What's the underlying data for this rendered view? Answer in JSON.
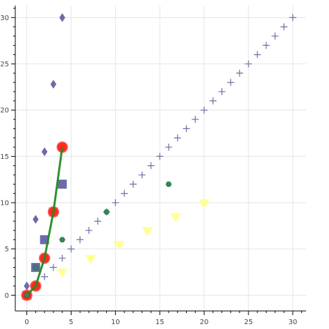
{
  "chart_data": {
    "type": "scatter",
    "title": "",
    "xlabel": "",
    "ylabel": "",
    "xlim": [
      -1.3,
      31.5
    ],
    "ylim": [
      -1.7,
      31.3
    ],
    "x_ticks": [
      "0",
      "5",
      "10",
      "15",
      "20",
      "25",
      "30"
    ],
    "y_ticks": [
      "0",
      "5",
      "10",
      "15",
      "20",
      "25",
      "30"
    ],
    "grid": true,
    "legend": "none",
    "series": [
      {
        "marker": "cross",
        "color": "#7777aa",
        "x": [
          0,
          1,
          2,
          3,
          4,
          5,
          6,
          7,
          8,
          9,
          10,
          11,
          12,
          13,
          14,
          15,
          16,
          17,
          18,
          19,
          20,
          21,
          22,
          23,
          24,
          25,
          26,
          27,
          28,
          29,
          30
        ],
        "y": [
          0,
          1,
          2,
          3,
          4,
          5,
          6,
          7,
          8,
          9,
          10,
          11,
          12,
          13,
          14,
          15,
          16,
          17,
          18,
          19,
          20,
          21,
          22,
          23,
          24,
          25,
          26,
          27,
          28,
          29,
          30
        ]
      },
      {
        "marker": "diamond",
        "color": "#6b6ba8",
        "x": [
          0,
          1,
          2,
          3,
          4
        ],
        "y": [
          1,
          8.2,
          15.5,
          22.8,
          30
        ]
      },
      {
        "marker": "square",
        "color": "#6b6ba8",
        "x": [
          0,
          1,
          2,
          3,
          4
        ],
        "y": [
          0,
          3,
          6,
          9,
          12
        ]
      },
      {
        "marker": "triangle-down",
        "color": "#ffff88",
        "x": [
          4,
          7.2,
          10.4,
          13.6,
          16.8,
          20
        ],
        "y": [
          2.4,
          3.9,
          5.4,
          6.9,
          8.4,
          9.9
        ]
      },
      {
        "marker": "circle",
        "color": "#ff2a1a",
        "stroke": "#ff6666",
        "x": [
          0,
          1,
          2,
          3,
          4
        ],
        "y": [
          0,
          1,
          4,
          9,
          16
        ]
      },
      {
        "marker": "line",
        "color": "#228b22",
        "x": [
          0,
          1,
          2,
          3,
          4
        ],
        "y": [
          0,
          1,
          4,
          9,
          16
        ]
      },
      {
        "marker": "hexagon",
        "color": "#2e8b57",
        "x": [
          0,
          1,
          4,
          9,
          16
        ],
        "y": [
          0,
          3,
          6,
          9,
          12
        ]
      }
    ]
  }
}
